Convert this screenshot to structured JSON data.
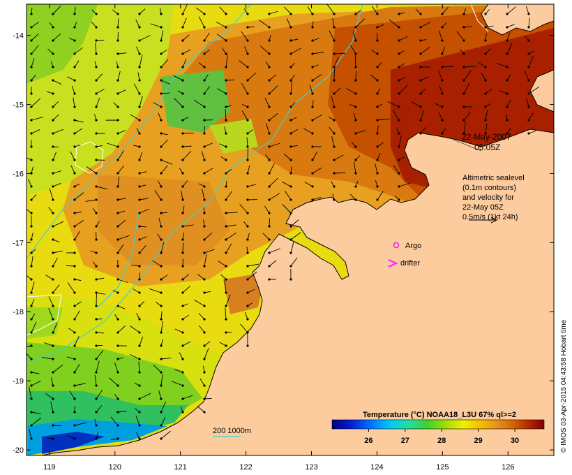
{
  "map": {
    "type": "sea-surface-temperature",
    "lon_ticks": [
      "119",
      "120",
      "121",
      "122",
      "123",
      "124",
      "125",
      "126"
    ],
    "lat_ticks": [
      "-14",
      "-15",
      "-16",
      "-17",
      "-18",
      "-19",
      "-20"
    ],
    "lon_range": [
      118.65,
      126.7
    ],
    "lat_range": [
      -20.08,
      -13.55
    ]
  },
  "annotations": {
    "timestamp_line1": "22-May-2007",
    "timestamp_line2": "05:05Z",
    "altimetry_lines": [
      "Altimetric sealevel",
      "(0.1m contours)",
      "and velocity for",
      "22-May 05Z"
    ],
    "velocity_scale_label": "0.5m/s (1kt 24h)",
    "argo_label": "Argo",
    "drifter_label": "drifter",
    "depth_label": "200  1000m"
  },
  "colorbar": {
    "title": "Temperature (°C) NOAA18_L3U 67% ql>=2",
    "ticks": [
      "26",
      "27",
      "28",
      "29",
      "30"
    ],
    "range": [
      25.0,
      30.8
    ]
  },
  "credit": "© IMOS 03-Apr-2015 04:43:58 Hobart time",
  "colors": {
    "land": "#fdcc9e",
    "argo": "#e020e0",
    "drifter": "#ff30ff",
    "isobath": "#40d0d0"
  }
}
